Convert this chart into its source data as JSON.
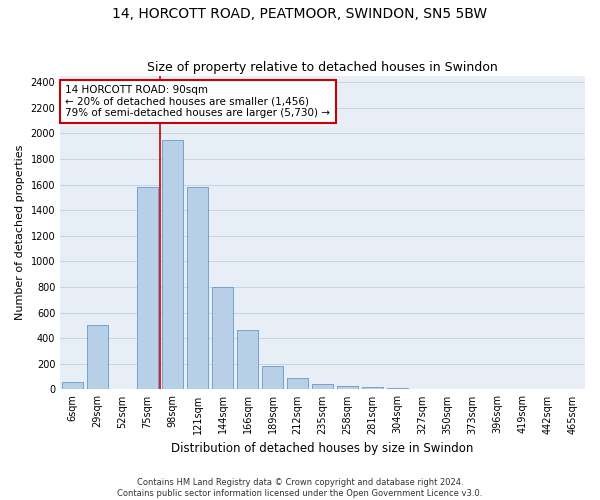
{
  "title1": "14, HORCOTT ROAD, PEATMOOR, SWINDON, SN5 5BW",
  "title2": "Size of property relative to detached houses in Swindon",
  "xlabel": "Distribution of detached houses by size in Swindon",
  "ylabel": "Number of detached properties",
  "footnote1": "Contains HM Land Registry data © Crown copyright and database right 2024.",
  "footnote2": "Contains public sector information licensed under the Open Government Licence v3.0.",
  "bar_color": "#b8cfe8",
  "bar_edge_color": "#6699cc",
  "grid_color": "#c8d4e4",
  "background_color": "#e8eef6",
  "annotation_box_color": "#cc0000",
  "annotation_line_color": "#cc0000",
  "annotation_text": [
    "14 HORCOTT ROAD: 90sqm",
    "← 20% of detached houses are smaller (1,456)",
    "79% of semi-detached houses are larger (5,730) →"
  ],
  "categories": [
    "6sqm",
    "29sqm",
    "52sqm",
    "75sqm",
    "98sqm",
    "121sqm",
    "144sqm",
    "166sqm",
    "189sqm",
    "212sqm",
    "235sqm",
    "258sqm",
    "281sqm",
    "304sqm",
    "327sqm",
    "350sqm",
    "373sqm",
    "396sqm",
    "419sqm",
    "442sqm",
    "465sqm"
  ],
  "values": [
    60,
    500,
    5,
    1580,
    1950,
    1580,
    800,
    465,
    185,
    90,
    40,
    30,
    20,
    15,
    5,
    3,
    2,
    1,
    1,
    0,
    0
  ],
  "ylim": [
    0,
    2450
  ],
  "yticks": [
    0,
    200,
    400,
    600,
    800,
    1000,
    1200,
    1400,
    1600,
    1800,
    2000,
    2200,
    2400
  ],
  "red_line_x": 3.5,
  "title1_fontsize": 10,
  "title2_fontsize": 9,
  "xlabel_fontsize": 8.5,
  "ylabel_fontsize": 8,
  "tick_fontsize": 7,
  "annotation_fontsize": 7.5,
  "footnote_fontsize": 6
}
